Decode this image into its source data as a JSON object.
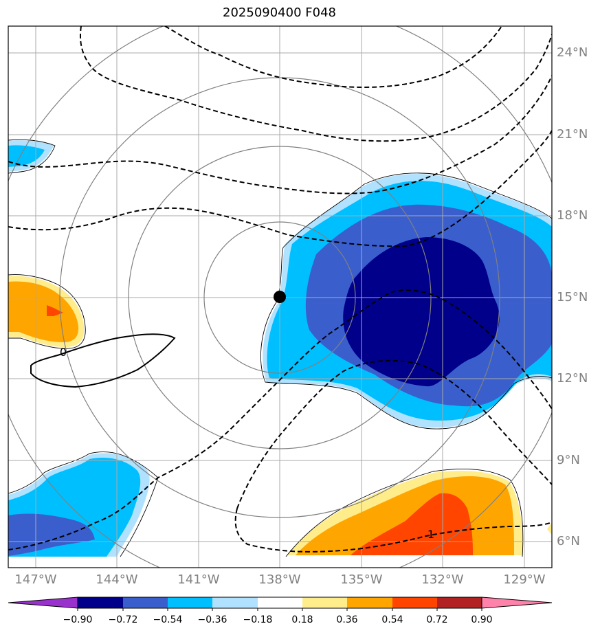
{
  "title": "2025090400 F048",
  "map": {
    "lat_labels": [
      "24°N",
      "21°N",
      "18°N",
      "15°N",
      "12°N",
      "9°N",
      "6°N"
    ],
    "lon_labels": [
      "147°W",
      "144°W",
      "141°W",
      "138°W",
      "135°W",
      "132°W",
      "129°W"
    ],
    "storm_center": {
      "lat": 15,
      "lon": -138
    },
    "contour_labels": [
      "0",
      "1"
    ],
    "colors": {
      "gridline": "#aaaaaa",
      "range_ring": "#808080",
      "contour": "#000000"
    }
  },
  "colorbar": {
    "levels": [
      "−0.90",
      "−0.72",
      "−0.54",
      "−0.36",
      "−0.18",
      "0.18",
      "0.36",
      "0.54",
      "0.72",
      "0.90"
    ],
    "colors": [
      "#9932cc",
      "#00008b",
      "#3a5fcd",
      "#00bfff",
      "#b0e2ff",
      "#ffffff",
      "#ffec8b",
      "#ffa500",
      "#ff4500",
      "#b22222",
      "#ff82ab"
    ]
  }
}
